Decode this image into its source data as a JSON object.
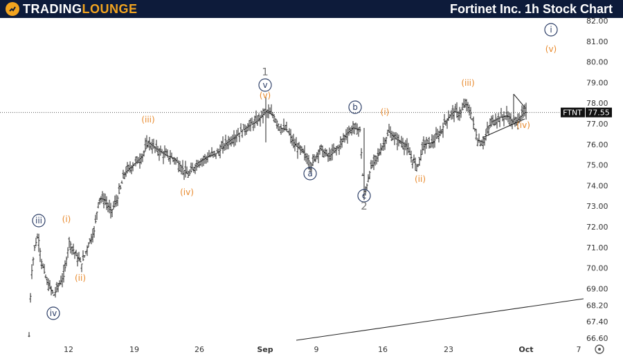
{
  "header": {
    "logo_text_part1": "TRADING",
    "logo_text_part2": "LOUNGE",
    "title": "Fortinet Inc. 1h Stock Chart"
  },
  "colors": {
    "header_bg": "#0d1b3a",
    "brand_orange": "#f2a41f",
    "wave_orange": "#e8892b",
    "wave_navy": "#2b3d66",
    "price_label_bg": "#111111"
  },
  "icons": {
    "settings": "gear-icon"
  },
  "chart_data": {
    "type": "ohlc",
    "symbol": "FTNT",
    "last_price": 77.55,
    "y_ticks": [
      "82.00",
      "81.00",
      "80.00",
      "79.00",
      "78.00",
      "77.00",
      "76.00",
      "75.00",
      "74.00",
      "73.00",
      "72.00",
      "71.00",
      "70.00",
      "69.00",
      "68.20",
      "67.40",
      "66.60"
    ],
    "x_ticks": [
      "12",
      "19",
      "26",
      "Sep",
      "9",
      "16",
      "23",
      "Oct",
      "7"
    ],
    "waves": [
      {
        "label": "iii",
        "style": "circle"
      },
      {
        "label": "iv",
        "style": "circle"
      },
      {
        "label": "(i)",
        "style": "orange"
      },
      {
        "label": "(ii)",
        "style": "orange"
      },
      {
        "label": "(iii)",
        "style": "orange"
      },
      {
        "label": "(iv)",
        "style": "orange"
      },
      {
        "label": "1",
        "style": "gray"
      },
      {
        "label": "v",
        "style": "circle"
      },
      {
        "label": "(v)",
        "style": "orange"
      },
      {
        "label": "a",
        "style": "circle"
      },
      {
        "label": "b",
        "style": "circle"
      },
      {
        "label": "c",
        "style": "circle"
      },
      {
        "label": "2",
        "style": "gray"
      },
      {
        "label": "(i)",
        "style": "orange"
      },
      {
        "label": "(ii)",
        "style": "orange"
      },
      {
        "label": "(iii)",
        "style": "orange"
      },
      {
        "label": "(iv)",
        "style": "orange"
      },
      {
        "label": "i",
        "style": "circle"
      },
      {
        "label": "(v)",
        "style": "orange"
      }
    ],
    "trendline": {
      "from": {
        "x": "Sep 4",
        "y": 66.6
      },
      "to": {
        "x": "Oct 8",
        "y": 68.25
      }
    }
  }
}
